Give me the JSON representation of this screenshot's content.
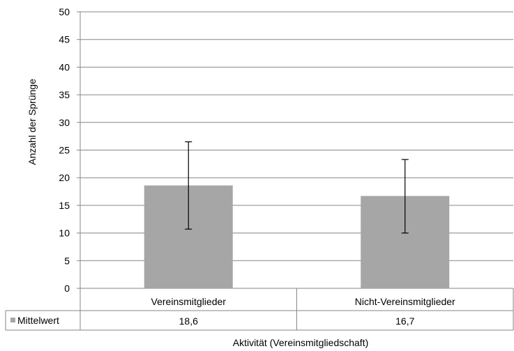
{
  "chart_data": {
    "type": "bar",
    "categories": [
      "Vereinsmitglieder",
      "Nicht-Vereinsmitglieder"
    ],
    "series": [
      {
        "name": "Mittelwert",
        "values": [
          18.6,
          16.7
        ],
        "value_labels": [
          "18,6",
          "16,7"
        ],
        "error_low": [
          10.7,
          10.0
        ],
        "error_high": [
          26.5,
          23.3
        ],
        "color": "#a6a6a6"
      }
    ],
    "ylabel": "Anzahl der Sprünge",
    "xlabel": "Aktivität (Vereinsmitgliedschaft)",
    "ylim": [
      0,
      50
    ],
    "yticks": [
      0,
      5,
      10,
      15,
      20,
      25,
      30,
      35,
      40,
      45,
      50
    ],
    "grid": true,
    "data_table": true
  }
}
